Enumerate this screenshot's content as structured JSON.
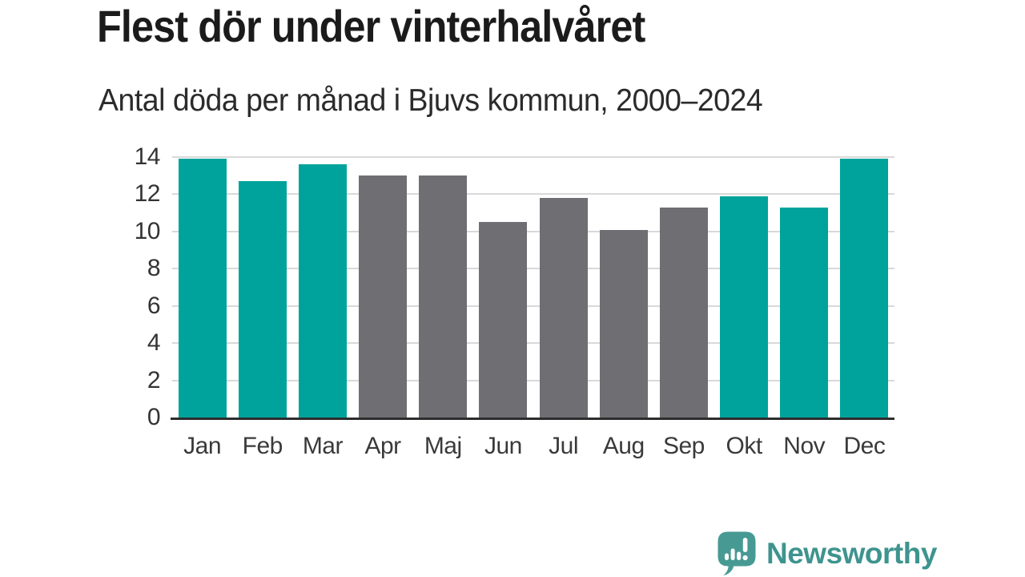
{
  "chart_data": {
    "type": "bar",
    "title": "Flest dör under vinterhalvåret",
    "subtitle": "Antal döda per månad i Bjuvs kommun, 2000–2024",
    "categories": [
      "Jan",
      "Feb",
      "Mar",
      "Apr",
      "Maj",
      "Jun",
      "Jul",
      "Aug",
      "Sep",
      "Okt",
      "Nov",
      "Dec"
    ],
    "values": [
      13.9,
      12.7,
      13.6,
      13.0,
      13.0,
      10.5,
      11.8,
      10.1,
      11.3,
      11.9,
      11.3,
      13.9
    ],
    "bar_colors": [
      "#00a39b",
      "#00a39b",
      "#00a39b",
      "#6e6e73",
      "#6e6e73",
      "#6e6e73",
      "#6e6e73",
      "#6e6e73",
      "#6e6e73",
      "#00a39b",
      "#00a39b",
      "#00a39b"
    ],
    "xlabel": "",
    "ylabel": "",
    "ylim": [
      0,
      14
    ],
    "y_ticks": [
      0,
      2,
      4,
      6,
      8,
      10,
      12,
      14
    ],
    "grid": "horizontal",
    "legend": "none",
    "colors": {
      "winter_highlight": "#00a39b",
      "summer_base": "#6e6e73",
      "gridline": "#d9d9d9",
      "axis_line": "#2d2d2d",
      "title_text": "#1b1b1b",
      "subtitle_text": "#2b2b2b",
      "tick_text": "#3a3a3a"
    }
  },
  "footer": {
    "brand": "Newsworthy",
    "brand_color": "#3e948e",
    "logo_icon": "newsworthy-speech-bubble-bar-chart-icon",
    "logo_color": "#479a93"
  }
}
